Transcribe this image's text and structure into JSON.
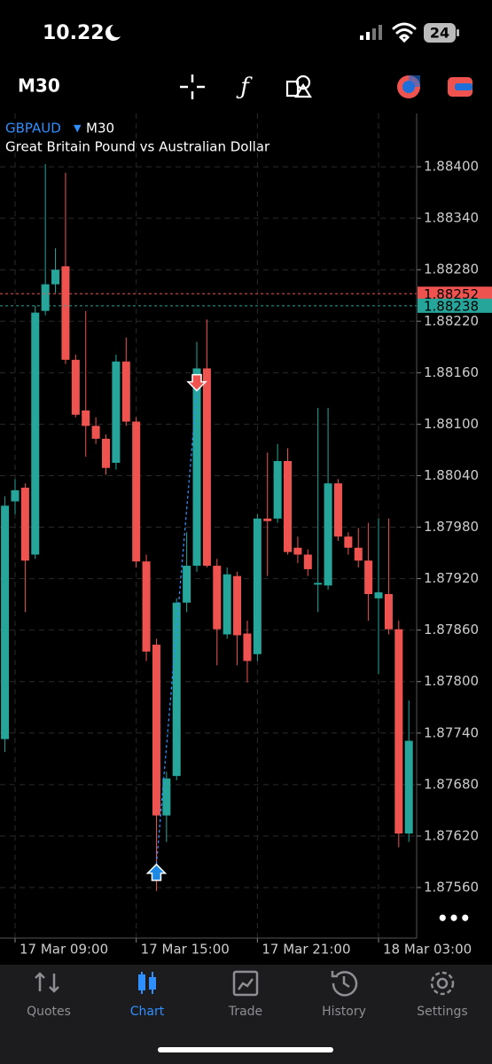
{
  "status_bar": {
    "time": "10.22",
    "battery": "24"
  },
  "toolbar": {
    "timeframe": "M30"
  },
  "chart_data": {
    "type": "candlestick",
    "symbol": "GBPAUD",
    "timeframe": "M30",
    "title": "Great Britain Pound vs Australian Dollar",
    "categories": [
      null,
      "17 Mar 09:00",
      null,
      null,
      null,
      null,
      null,
      null,
      null,
      null,
      null,
      null,
      null,
      "17 Mar 15:00",
      null,
      null,
      null,
      null,
      null,
      null,
      null,
      null,
      null,
      null,
      null,
      "17 Mar 21:00",
      null,
      null,
      null,
      null,
      null,
      null,
      null,
      null,
      null,
      null,
      null,
      "18 Mar 03:00",
      null,
      null,
      null
    ],
    "open": [
      1.87733,
      1.8801,
      1.88026,
      1.87948,
      1.88232,
      1.88263,
      1.88284,
      1.88175,
      1.88116,
      1.88098,
      1.88083,
      1.88055,
      1.88173,
      1.88103,
      1.8794,
      1.87843,
      1.87644,
      1.8769,
      1.87892,
      1.87935,
      1.88165,
      1.87935,
      1.87855,
      1.87923,
      1.87856,
      1.87832,
      1.8799,
      1.8799,
      1.88057,
      1.87956,
      1.87948,
      1.87913,
      1.87912,
      1.88031,
      1.87969,
      1.87956,
      1.87941,
      1.87897,
      1.87902,
      1.87861,
      1.87623
    ],
    "high": [
      1.88016,
      1.88036,
      1.88031,
      1.88238,
      1.88403,
      1.88305,
      1.88393,
      1.88181,
      1.88232,
      1.88108,
      1.88088,
      1.88181,
      1.88201,
      1.88108,
      1.87948,
      1.8785,
      1.87695,
      1.87897,
      1.87974,
      1.88196,
      1.88222,
      1.87943,
      1.87933,
      1.87928,
      1.87871,
      1.87995,
      1.88067,
      1.88077,
      1.88072,
      1.87969,
      1.87954,
      1.88119,
      1.88119,
      1.88036,
      1.87974,
      1.87979,
      1.87985,
      1.8799,
      1.8799,
      1.87871,
      1.87778
    ],
    "low": [
      1.87718,
      1.87995,
      1.87881,
      1.87943,
      1.88227,
      1.88253,
      1.8817,
      1.88108,
      1.88062,
      1.88077,
      1.88041,
      1.88047,
      1.88098,
      1.87933,
      1.87824,
      1.87556,
      1.87613,
      1.87685,
      1.87881,
      1.87928,
      1.87933,
      1.87819,
      1.8785,
      1.87819,
      1.87799,
      1.87824,
      1.87923,
      1.87985,
      1.87948,
      1.87938,
      1.87923,
      1.87881,
      1.87907,
      1.87964,
      1.87948,
      1.87933,
      1.87871,
      1.87809,
      1.87855,
      1.87607,
      1.87613
    ],
    "close": [
      1.88005,
      1.88023,
      1.87941,
      1.8823,
      1.88263,
      1.8828,
      1.88175,
      1.88111,
      1.88098,
      1.88083,
      1.88049,
      1.88173,
      1.88103,
      1.8794,
      1.87835,
      1.87644,
      1.87687,
      1.87892,
      1.87935,
      1.88165,
      1.87935,
      1.87861,
      1.87925,
      1.87854,
      1.87824,
      1.8799,
      1.87987,
      1.88057,
      1.87951,
      1.87948,
      1.87931,
      1.87915,
      1.88031,
      1.87969,
      1.87956,
      1.87941,
      1.87902,
      1.87904,
      1.87861,
      1.87623,
      1.87731
    ],
    "up_color": "#26a69a",
    "down_color": "#ef5350",
    "ylim": [
      1.8753,
      1.8846
    ],
    "yticks": [
      {
        "value": 1.884,
        "label": "1.88400"
      },
      {
        "value": 1.8834,
        "label": "1.88340"
      },
      {
        "value": 1.8828,
        "label": "1.88280"
      },
      {
        "value": 1.8822,
        "label": "1.88220"
      },
      {
        "value": 1.8816,
        "label": "1.88160"
      },
      {
        "value": 1.881,
        "label": "1.88100"
      },
      {
        "value": 1.8804,
        "label": "1.88040"
      },
      {
        "value": 1.8798,
        "label": "1.87980"
      },
      {
        "value": 1.8792,
        "label": "1.87920"
      },
      {
        "value": 1.8786,
        "label": "1.87860"
      },
      {
        "value": 1.878,
        "label": "1.87800"
      },
      {
        "value": 1.8774,
        "label": "1.87740"
      },
      {
        "value": 1.8768,
        "label": "1.87680"
      },
      {
        "value": 1.8762,
        "label": "1.87620"
      },
      {
        "value": 1.8756,
        "label": "1.87560"
      }
    ],
    "ask": 1.88252,
    "ask_color": "#ef5350",
    "bid": 1.88238,
    "bid_color": "#26a69a",
    "trade": {
      "open_index": 15,
      "open_price": 1.87587,
      "close_index": 19,
      "close_price": 1.88139
    },
    "grid": true
  },
  "tabs": [
    "Quotes",
    "Chart",
    "Trade",
    "History",
    "Settings"
  ],
  "active_tab": 1
}
